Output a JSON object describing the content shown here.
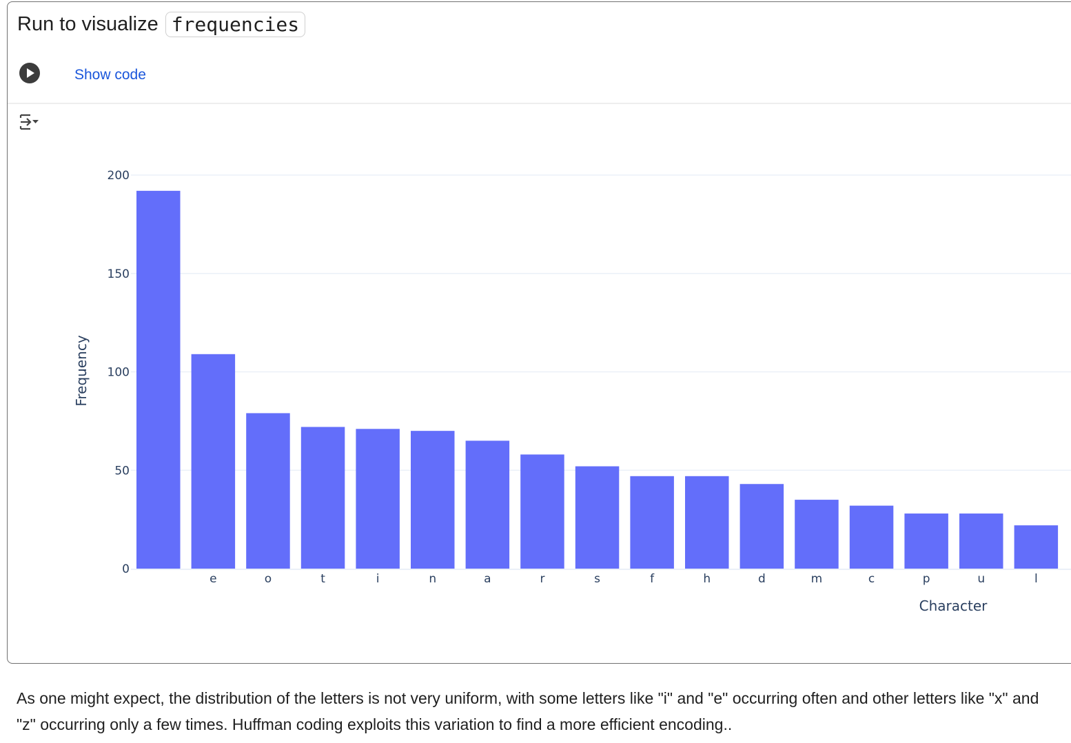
{
  "cell": {
    "title_prefix": "Run to visualize",
    "title_code": "frequencies",
    "show_code_label": "Show code",
    "run_icon": "play-circle-icon",
    "output_icon": "output-toggle-icon"
  },
  "chart_data": {
    "type": "bar",
    "xlabel": "Character",
    "ylabel": "Frequency",
    "ylim": [
      0,
      200
    ],
    "yticks": [
      0,
      50,
      100,
      150,
      200
    ],
    "grid": true,
    "bar_color": "#636efa",
    "categories": [
      " ",
      "e",
      "o",
      "t",
      "i",
      "n",
      "a",
      "r",
      "s",
      "f",
      "h",
      "d",
      "m",
      "c",
      "p",
      "u",
      "l"
    ],
    "values": [
      192,
      109,
      79,
      72,
      71,
      70,
      65,
      58,
      52,
      47,
      47,
      43,
      35,
      32,
      28,
      28,
      22
    ]
  },
  "paragraph": "As one might expect, the distribution of the letters is not very uniform, with some letters like \"i\" and \"e\" occurring often and other letters like \"x\" and \"z\" occurring only a few times. Huffman coding exploits this variation to find a more efficient encoding.."
}
